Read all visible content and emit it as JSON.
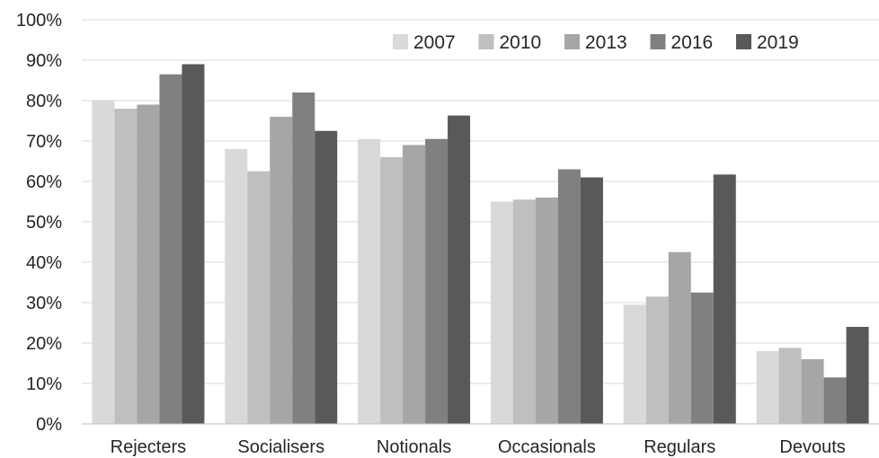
{
  "chart_data": {
    "type": "bar",
    "categories": [
      "Rejecters",
      "Socialisers",
      "Notionals",
      "Occasionals",
      "Regulars",
      "Devouts"
    ],
    "series": [
      {
        "name": "2007",
        "color": "#d9d9d9",
        "values": [
          80,
          68,
          70.5,
          55,
          29.5,
          18
        ]
      },
      {
        "name": "2010",
        "color": "#bfbfbf",
        "values": [
          78,
          62.5,
          66,
          55.5,
          31.5,
          18.8
        ]
      },
      {
        "name": "2013",
        "color": "#a6a6a6",
        "values": [
          79,
          76,
          69,
          56,
          42.5,
          16
        ]
      },
      {
        "name": "2016",
        "color": "#808080",
        "values": [
          86.5,
          82,
          70.5,
          63,
          32.5,
          11.5
        ]
      },
      {
        "name": "2019",
        "color": "#595959",
        "values": [
          89,
          72.5,
          76.3,
          61,
          61.7,
          24
        ]
      }
    ],
    "y_ticks": [
      "0%",
      "10%",
      "20%",
      "30%",
      "40%",
      "50%",
      "60%",
      "70%",
      "80%",
      "90%",
      "100%"
    ],
    "ylim": [
      0,
      100
    ],
    "grid": true,
    "legend_position": "top-right",
    "title": "",
    "xlabel": "",
    "ylabel": ""
  }
}
